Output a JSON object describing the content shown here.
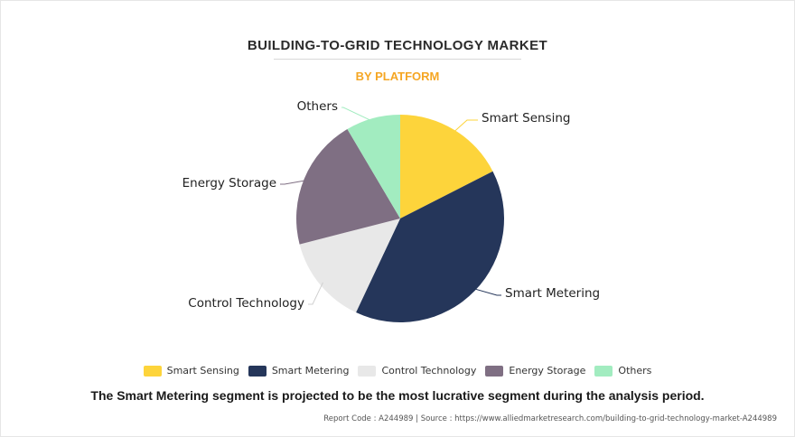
{
  "chart_data": {
    "type": "pie",
    "title": "BUILDING-TO-GRID TECHNOLOGY MARKET",
    "subtitle": "BY PLATFORM",
    "categories": [
      "Smart Sensing",
      "Smart Metering",
      "Control Technology",
      "Energy Storage",
      "Others"
    ],
    "values": [
      17.5,
      39.5,
      14,
      20.5,
      8.5
    ],
    "colors": [
      "#fdd43b",
      "#25365a",
      "#e8e8e8",
      "#7f6f83",
      "#a2ecc0"
    ],
    "legend": "bottom"
  },
  "footnote": "The Smart Metering segment is projected to be the most lucrative segment during the analysis period.",
  "source": "Report Code : A244989  |  Source : https://www.alliedmarketresearch.com/building-to-grid-technology-market-A244989"
}
